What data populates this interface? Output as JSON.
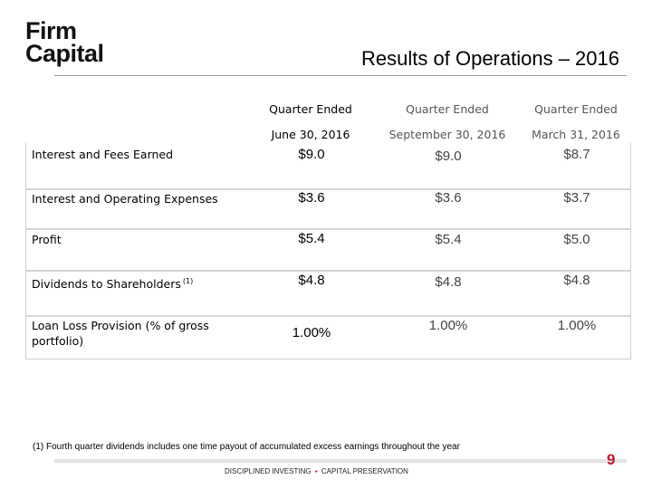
{
  "logo": {
    "line1": "Firm",
    "line2": "Capital"
  },
  "title": "Results of Operations – 2016",
  "columns": [
    {
      "line1": "Quarter Ended",
      "line2": "June 30, 2016"
    },
    {
      "line1": "Quarter Ended",
      "line2": "September 30, 2016"
    },
    {
      "line1": "Quarter Ended",
      "line2": "March 31, 2016"
    }
  ],
  "rows": [
    {
      "label": "Interest and Fees Earned",
      "values": [
        "$9.0",
        "$9.0",
        "$8.7"
      ]
    },
    {
      "label": "Interest and Operating Expenses",
      "values": [
        "$3.6",
        "$3.6",
        "$3.7"
      ]
    },
    {
      "label": "Profit",
      "values": [
        "$5.4",
        "$5.4",
        "$5.0"
      ]
    },
    {
      "label": "Dividends to Shareholders",
      "footnote_marker": "(1)",
      "values": [
        "$4.8",
        "$4.8",
        "$4.8"
      ]
    },
    {
      "label": "Loan Loss Provision (% of gross portfolio)",
      "values": [
        "1.00%",
        "1.00%",
        "1.00%"
      ]
    }
  ],
  "footnote": "(1) Fourth quarter dividends includes one time payout of accumulated excess earnings throughout the year",
  "footer": {
    "left": "DISCIPLINED INVESTING",
    "separator": "▪",
    "right": "CAPITAL PRESERVATION"
  },
  "page_number": "9",
  "colors": {
    "brand_red": "#c8102e",
    "rule_gray": "#d4d4d4"
  }
}
